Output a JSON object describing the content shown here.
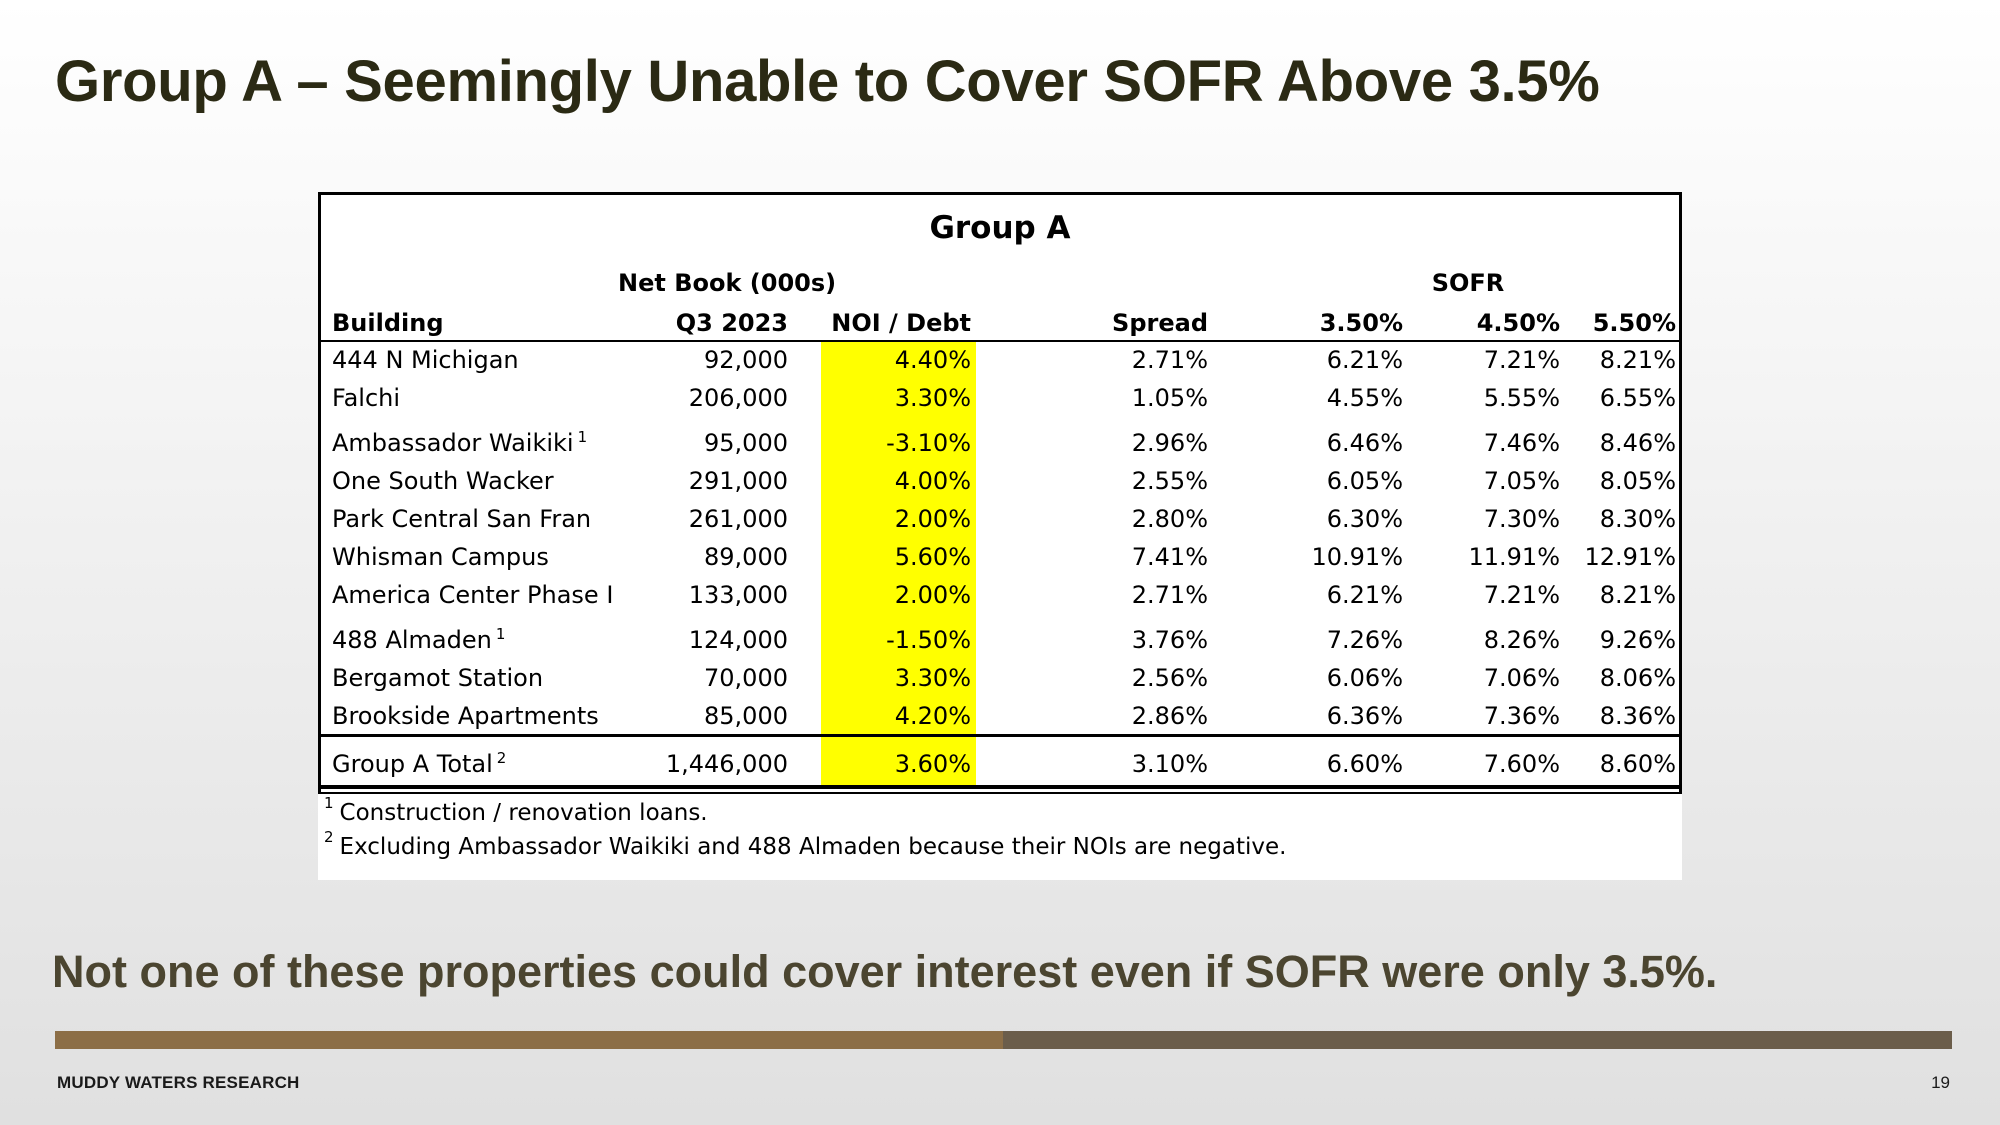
{
  "title": "Group A – Seemingly Unable to Cover SOFR Above 3.5%",
  "table": {
    "title": "Group A",
    "header_top": {
      "net_book": "Net Book (000s)",
      "sofr": "SOFR"
    },
    "columns": [
      "Building",
      "Q3 2023",
      "NOI / Debt",
      "Spread",
      "3.50%",
      "4.50%",
      "5.50%"
    ],
    "rows": [
      {
        "building": "444 N Michigan",
        "note": "",
        "net_book": "92,000",
        "noi_debt": "4.40%",
        "spread": "2.71%",
        "s35": "6.21%",
        "s45": "7.21%",
        "s55": "8.21%"
      },
      {
        "building": "Falchi",
        "note": "",
        "net_book": "206,000",
        "noi_debt": "3.30%",
        "spread": "1.05%",
        "s35": "4.55%",
        "s45": "5.55%",
        "s55": "6.55%"
      },
      {
        "building": "Ambassador Waikiki",
        "note": "1",
        "net_book": "95,000",
        "noi_debt": "-3.10%",
        "spread": "2.96%",
        "s35": "6.46%",
        "s45": "7.46%",
        "s55": "8.46%"
      },
      {
        "building": "One South Wacker",
        "note": "",
        "net_book": "291,000",
        "noi_debt": "4.00%",
        "spread": "2.55%",
        "s35": "6.05%",
        "s45": "7.05%",
        "s55": "8.05%"
      },
      {
        "building": "Park Central San Fran",
        "note": "",
        "net_book": "261,000",
        "noi_debt": "2.00%",
        "spread": "2.80%",
        "s35": "6.30%",
        "s45": "7.30%",
        "s55": "8.30%"
      },
      {
        "building": "Whisman Campus",
        "note": "",
        "net_book": "89,000",
        "noi_debt": "5.60%",
        "spread": "7.41%",
        "s35": "10.91%",
        "s45": "11.91%",
        "s55": "12.91%"
      },
      {
        "building": "America Center Phase I",
        "note": "",
        "net_book": "133,000",
        "noi_debt": "2.00%",
        "spread": "2.71%",
        "s35": "6.21%",
        "s45": "7.21%",
        "s55": "8.21%"
      },
      {
        "building": "488 Almaden",
        "note": "1",
        "net_book": "124,000",
        "noi_debt": "-1.50%",
        "spread": "3.76%",
        "s35": "7.26%",
        "s45": "8.26%",
        "s55": "9.26%"
      },
      {
        "building": "Bergamot Station",
        "note": "",
        "net_book": "70,000",
        "noi_debt": "3.30%",
        "spread": "2.56%",
        "s35": "6.06%",
        "s45": "7.06%",
        "s55": "8.06%"
      },
      {
        "building": "Brookside Apartments",
        "note": "",
        "net_book": "85,000",
        "noi_debt": "4.20%",
        "spread": "2.86%",
        "s35": "6.36%",
        "s45": "7.36%",
        "s55": "8.36%"
      }
    ],
    "total": {
      "building": "Group A Total",
      "note": "2",
      "net_book": "1,446,000",
      "noi_debt": "3.60%",
      "spread": "3.10%",
      "s35": "6.60%",
      "s45": "7.60%",
      "s55": "8.60%"
    },
    "highlight_color": "#ffff00",
    "footnotes": [
      {
        "mark": "1",
        "text": "Construction / renovation loans."
      },
      {
        "mark": "2",
        "text": "Excluding Ambassador Waikiki and 488 Almaden because their NOIs are negative."
      }
    ]
  },
  "subtitle": "Not one of these properties could cover interest even if SOFR were only 3.5%.",
  "footer": {
    "brand": "MUDDY WATERS RESEARCH",
    "page": "19"
  },
  "colors": {
    "title": "#2b2a14",
    "subtitle": "#4b4530",
    "bar_left": "#8c6e46",
    "bar_right": "#6b5d4a"
  }
}
